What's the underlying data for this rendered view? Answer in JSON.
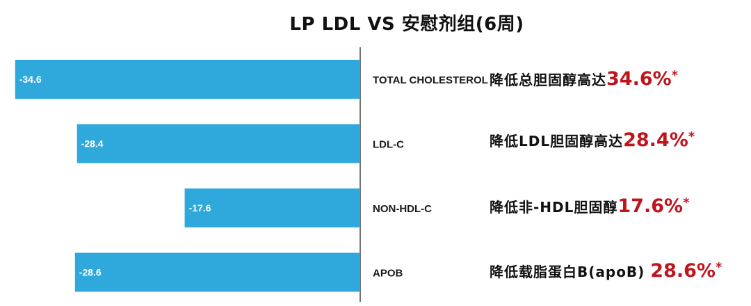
{
  "chart_data": {
    "type": "bar",
    "orientation": "horizontal",
    "title": "LP LDL VS 安慰剂组(6周)",
    "categories": [
      "TOTAL CHOLESTEROL",
      "LDL-C",
      "NON-HDL-C",
      "APOB"
    ],
    "values": [
      -34.6,
      -28.4,
      -17.6,
      -28.6
    ],
    "value_labels": [
      "-34.6",
      "-28.4",
      "-17.6",
      "-28.6"
    ],
    "bar_color": "#2fa8dc",
    "xlim": [
      -35,
      0
    ],
    "grid": false
  },
  "annotations": [
    {
      "text": "降低总胆固醇高达",
      "pct": "34.6%",
      "star": "*"
    },
    {
      "text": "降低LDL胆固醇高达",
      "pct": "28.4%",
      "star": "*"
    },
    {
      "text": "降低非-HDL胆固醇",
      "pct": "17.6%",
      "star": "*"
    },
    {
      "text": "降低载脂蛋白B(apoB) ",
      "pct": "28.6%",
      "star": "*"
    }
  ],
  "colors": {
    "accent": "#c0141c"
  }
}
